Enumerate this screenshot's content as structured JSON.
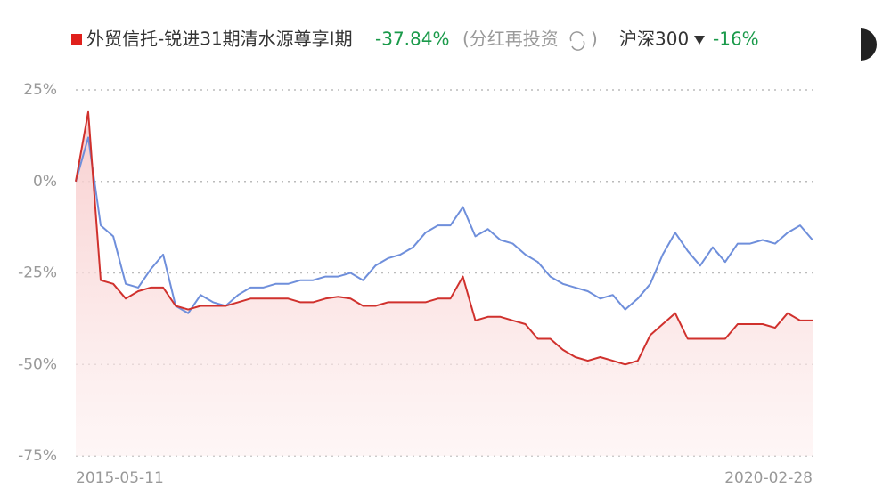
{
  "chart_data": {
    "type": "line",
    "categories": [
      "2015-05-11",
      null,
      null,
      null,
      null,
      null,
      null,
      null,
      null,
      null,
      null,
      null,
      null,
      null,
      null,
      null,
      null,
      null,
      null,
      null,
      null,
      null,
      null,
      null,
      null,
      null,
      null,
      null,
      null,
      null,
      null,
      null,
      null,
      null,
      null,
      null,
      null,
      null,
      null,
      null,
      null,
      null,
      null,
      null,
      null,
      null,
      null,
      null,
      null,
      null,
      null,
      null,
      null,
      null,
      null,
      null,
      null,
      null,
      null,
      "2020-02-28"
    ],
    "series": [
      {
        "name": "外贸信托-锐进31期清水源尊享I期",
        "color": "#d0312d",
        "change": "-37.84%",
        "note": "(分红再投资",
        "note_close": ")",
        "values": [
          0,
          19,
          -27,
          -28,
          -32,
          -30,
          -29,
          -29,
          -34,
          -35,
          -34,
          -34,
          -34,
          -33,
          -32,
          -32,
          -32,
          -32,
          -33,
          -33,
          -32,
          -31.5,
          -32,
          -34,
          -34,
          -33,
          -33,
          -33,
          -33,
          -32,
          -32,
          -26,
          -38,
          -37,
          -37,
          -38,
          -39,
          -43,
          -43,
          -46,
          -48,
          -49,
          -48,
          -49,
          -50,
          -49,
          -42,
          -39,
          -36,
          -43,
          -43,
          -43,
          -43,
          -39,
          -39,
          -39,
          -40,
          -36,
          -38,
          -38
        ]
      },
      {
        "name": "沪深300",
        "color": "#6f8fdb",
        "change": "-16%",
        "values": [
          0,
          12,
          -12,
          -15,
          -28,
          -29,
          -24,
          -20,
          -34,
          -36,
          -31,
          -33,
          -34,
          -31,
          -29,
          -29,
          -28,
          -28,
          -27,
          -27,
          -26,
          -26,
          -25,
          -27,
          -23,
          -21,
          -20,
          -18,
          -14,
          -12,
          -12,
          -7,
          -15,
          -13,
          -16,
          -17,
          -20,
          -22,
          -26,
          -28,
          -29,
          -30,
          -32,
          -31,
          -35,
          -32,
          -28,
          -20,
          -14,
          -19,
          -23,
          -18,
          -22,
          -17,
          -17,
          -16,
          -17,
          -14,
          -12,
          -16
        ]
      }
    ],
    "change_color": "#1a9a4a",
    "ylim": [
      -75,
      25
    ],
    "yticks": [
      {
        "value": 25,
        "label": "25%"
      },
      {
        "value": 0,
        "label": "0%"
      },
      {
        "value": -25,
        "label": "-25%"
      },
      {
        "value": -50,
        "label": "-50%"
      },
      {
        "value": -75,
        "label": "-75%"
      }
    ],
    "grid": true
  }
}
